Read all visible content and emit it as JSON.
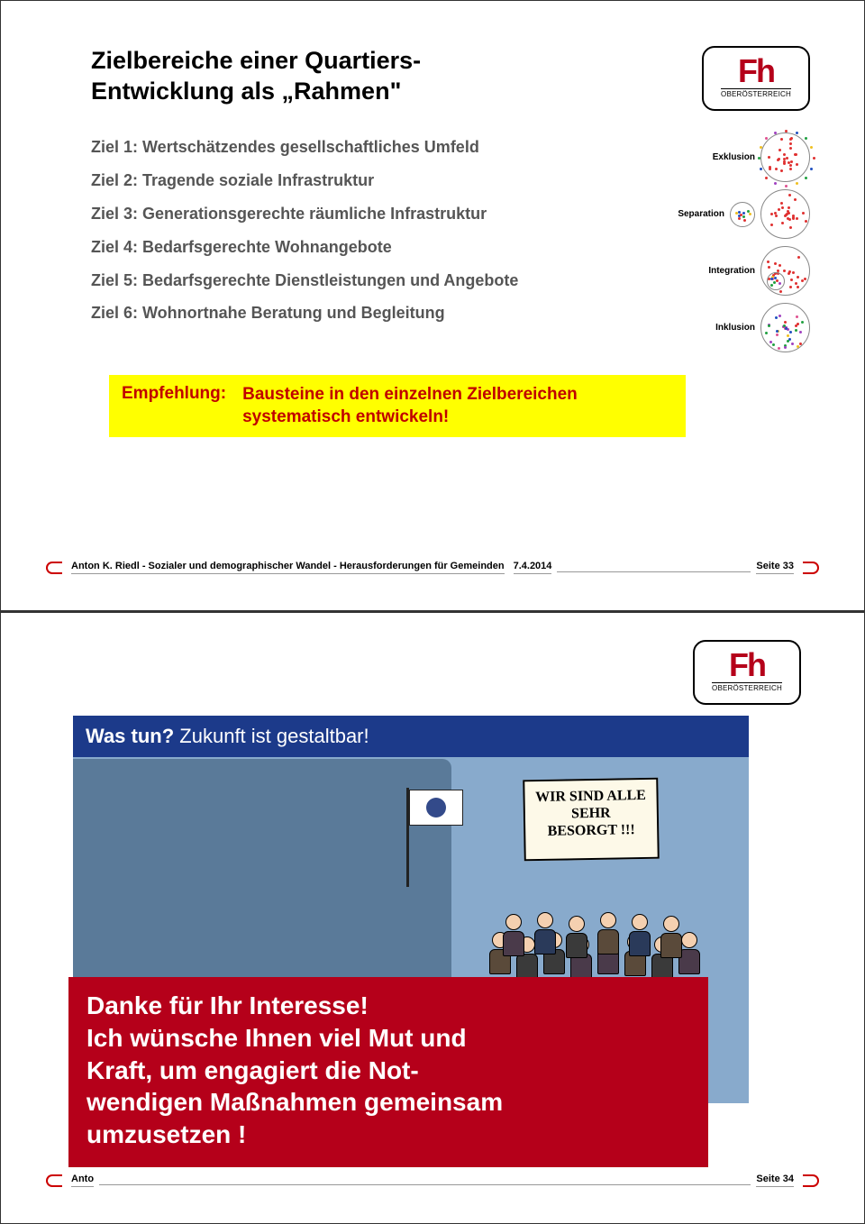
{
  "logo": {
    "text": "Fh",
    "sub": "OBERÖSTERREICH"
  },
  "slide1": {
    "title_l1": "Zielbereiche einer Quartiers-",
    "title_l2": "Entwicklung als „Rahmen\"",
    "goals": [
      "Ziel 1: Wertschätzendes gesellschaftliches Umfeld",
      "Ziel 2: Tragende soziale Infrastruktur",
      "Ziel 3: Generationsgerechte räumliche Infrastruktur",
      "Ziel 4: Bedarfsgerechte Wohnangebote",
      "Ziel 5: Bedarfsgerechte Dienstleistungen und Angebote",
      "Ziel 6: Wohnortnahe Beratung und Begleitung"
    ],
    "diagrams": [
      {
        "label": "Exklusion"
      },
      {
        "label": "Separation"
      },
      {
        "label": "Integration"
      },
      {
        "label": "Inklusion"
      }
    ],
    "diagram_colors": [
      "#e03030",
      "#2050c0",
      "#20a040",
      "#f0c020",
      "#e05090",
      "#a040c0"
    ],
    "reco_label": "Empfehlung:",
    "reco_text": "Bausteine in den einzelnen Zielbereichen systematisch entwickeln!",
    "footer_text": "Anton K. Riedl - Sozialer und demographischer Wandel - Herausforderungen für Gemeinden",
    "footer_date": "7.4.2014",
    "footer_page": "Seite 33"
  },
  "slide2": {
    "blue_q": "Was tun?",
    "blue_rest": " Zukunft ist gestaltbar!",
    "sign_l1": "WIR SIND ALLE",
    "sign_l2": "SEHR",
    "sign_l3": "BESORGT !!!",
    "red_text": "Danke für Ihr Interesse!\nIch wünsche Ihnen viel Mut und Kraft, um engagiert die Not-wendigen Maßnahmen gemeinsam umzusetzen !",
    "red_lines": [
      "Danke für Ihr Interesse!",
      "Ich wünsche Ihnen viel Mut und",
      "Kraft, um engagiert die Not-",
      "wendigen Maßnahmen gemeinsam",
      "umzusetzen !"
    ],
    "footer_text_short": "Anto",
    "footer_page": "Seite 34"
  }
}
